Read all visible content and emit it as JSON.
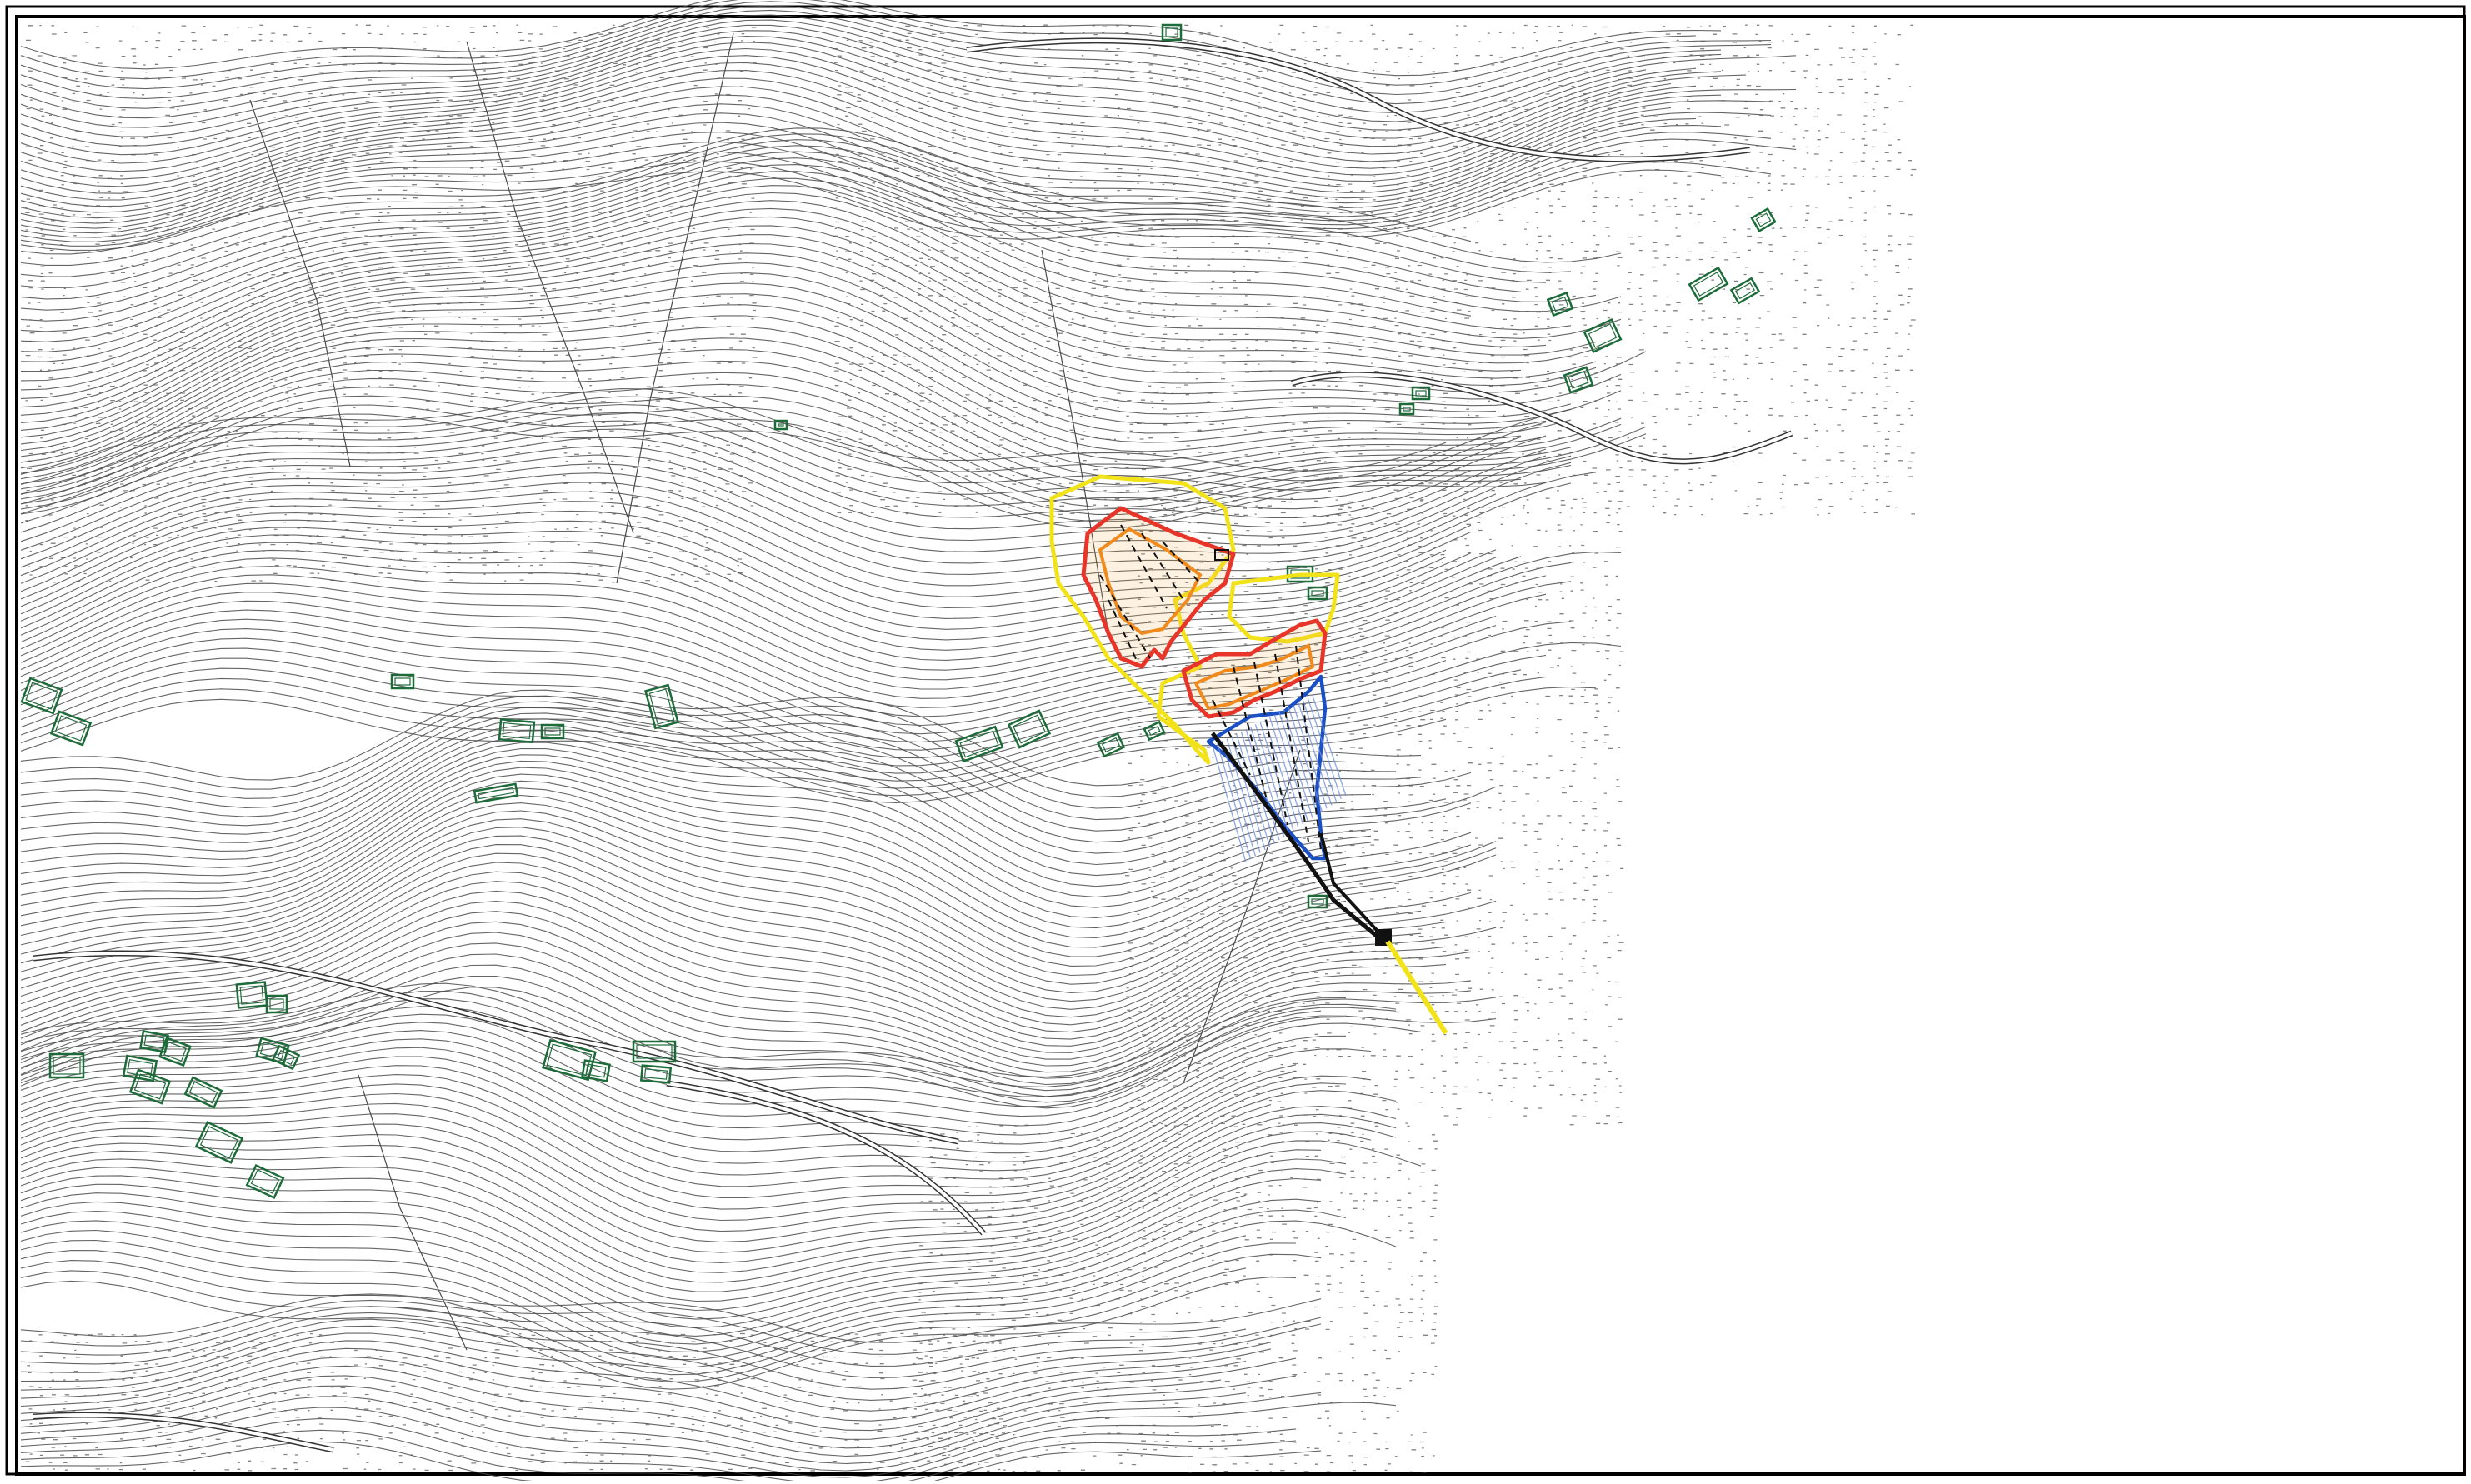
{
  "sheet": {
    "background": "#ffffff",
    "frame_color": "#000000",
    "contour_color": "#4a4a4a",
    "dot_color": "#5a5a5a"
  },
  "map": {
    "type": "topographic contour plan",
    "labels": [],
    "colors": {
      "buildings": "#1e6b3a",
      "zone_outer": "#f2e21a",
      "zone_mid": "#e8352a",
      "zone_inner": "#f08a1c",
      "channel": "#1b4fc4",
      "channel_hatch": "#6f8fe0",
      "track": "#111111"
    },
    "building_count": 40,
    "zones": [
      {
        "name": "outer-boundary-yellow",
        "color": "#f2e21a"
      },
      {
        "name": "boundary-red",
        "color": "#e8352a"
      },
      {
        "name": "boundary-orange",
        "color": "#f08a1c"
      },
      {
        "name": "channel-blue",
        "color": "#1b4fc4"
      },
      {
        "name": "runout-black",
        "color": "#111111"
      }
    ]
  }
}
